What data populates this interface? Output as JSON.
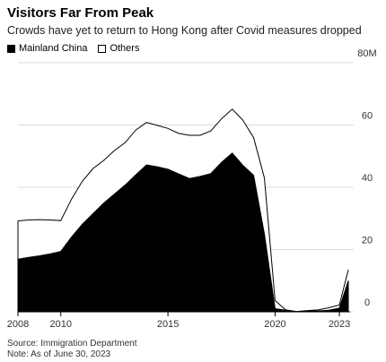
{
  "title": "Visitors Far From Peak",
  "subtitle": "Crowds have yet to return to Hong Kong after Covid measures dropped",
  "legend": [
    {
      "label": "Mainland China",
      "style": "filled",
      "color": "#000000"
    },
    {
      "label": "Others",
      "style": "outline",
      "color": "#ffffff"
    }
  ],
  "chart_data": {
    "type": "area",
    "stacked": true,
    "title": "Visitors Far From Peak",
    "x": [
      "2008-01",
      "2008-07",
      "2009-01",
      "2009-07",
      "2010-01",
      "2010-07",
      "2011-01",
      "2011-07",
      "2012-01",
      "2012-07",
      "2013-01",
      "2013-07",
      "2014-01",
      "2014-07",
      "2015-01",
      "2015-07",
      "2016-01",
      "2016-07",
      "2017-01",
      "2017-07",
      "2018-01",
      "2018-07",
      "2019-01",
      "2019-07",
      "2020-01",
      "2020-07",
      "2021-01",
      "2021-07",
      "2022-01",
      "2022-07",
      "2023-01",
      "2023-06"
    ],
    "series": [
      {
        "name": "Mainland China",
        "color": "#000000",
        "values": [
          16.9,
          17.5,
          18.0,
          18.6,
          19.4,
          24.0,
          28.1,
          31.5,
          34.9,
          37.8,
          40.7,
          44.0,
          47.2,
          46.6,
          45.8,
          44.3,
          42.8,
          43.5,
          44.4,
          48.0,
          51.0,
          47.0,
          43.8,
          25.0,
          1.0,
          0.5,
          0.0,
          0.3,
          0.3,
          0.5,
          1.2,
          10.0
        ]
      },
      {
        "name": "Others",
        "color": "#ffffff",
        "values": [
          12.3,
          12.0,
          11.6,
          10.9,
          9.9,
          12.2,
          13.8,
          14.5,
          13.7,
          14.0,
          13.6,
          14.4,
          13.6,
          13.3,
          13.1,
          13.0,
          13.9,
          13.2,
          13.7,
          14.0,
          14.1,
          14.5,
          12.1,
          18.0,
          2.6,
          0.1,
          0.1,
          0.1,
          0.3,
          0.8,
          1.0,
          3.5
        ]
      }
    ],
    "x_ticks": [
      "2008",
      "2010",
      "2015",
      "2020",
      "2023"
    ],
    "y_ticks": [
      "0",
      "20",
      "40",
      "60",
      "80M"
    ],
    "ylim": [
      0,
      80
    ]
  },
  "source": "Source: Immigration Department",
  "note": "Note: As of June 30, 2023"
}
